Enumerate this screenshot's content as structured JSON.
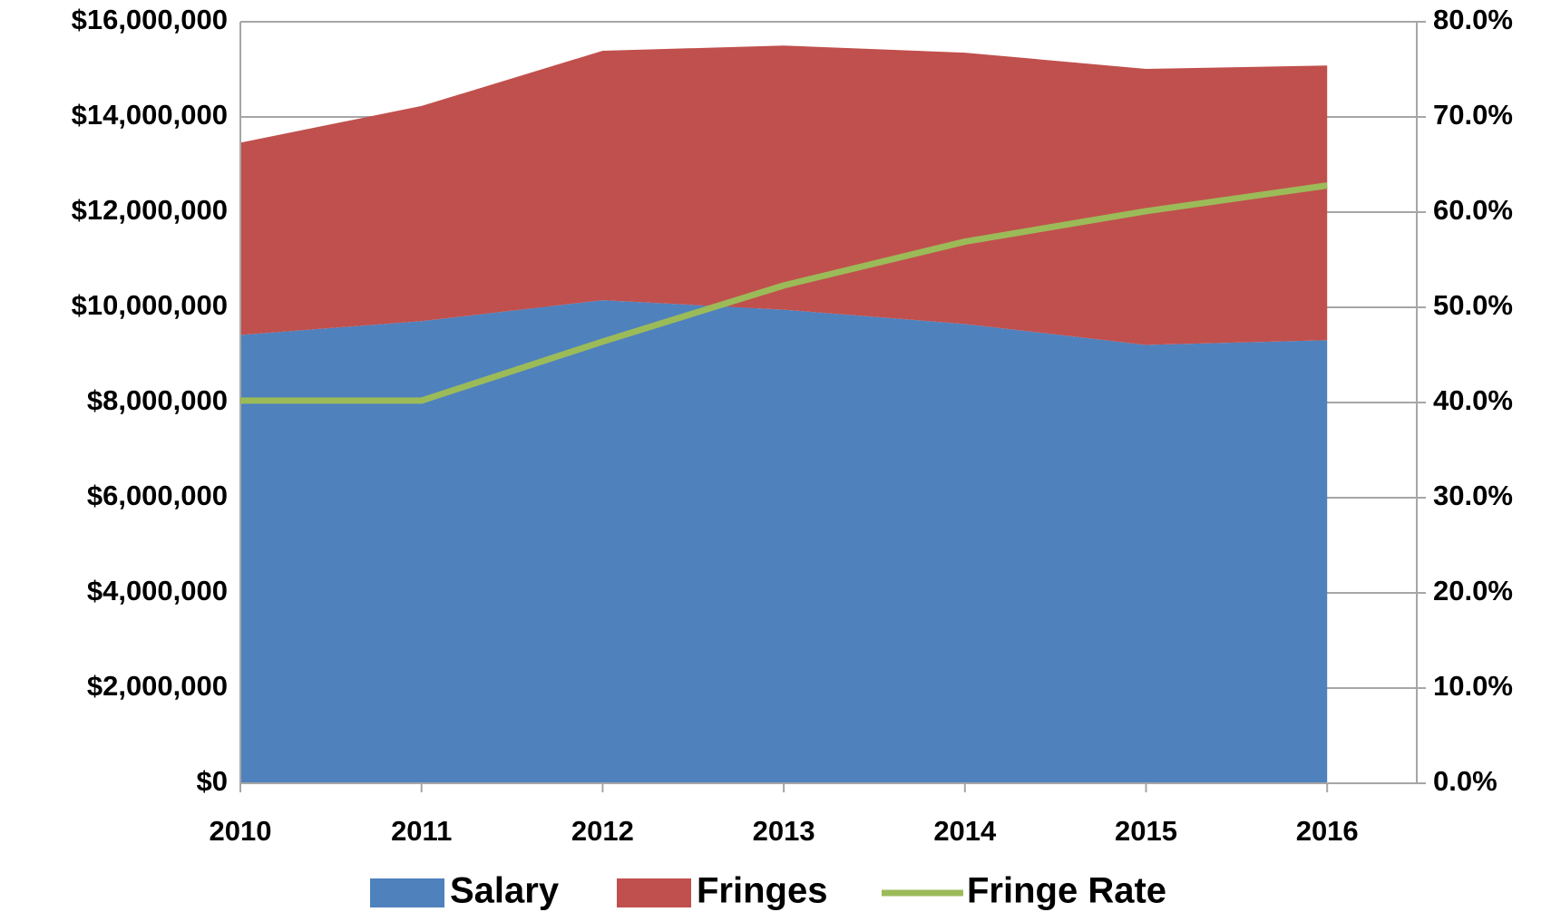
{
  "chart_data": {
    "type": "stacked-area-line",
    "categories": [
      "2010",
      "2011",
      "2012",
      "2013",
      "2014",
      "2015",
      "2016"
    ],
    "series": [
      {
        "name": "Salary",
        "color": "#4f81bd",
        "values": [
          9420000,
          9710000,
          10150000,
          9950000,
          9650000,
          9210000,
          9310000
        ]
      },
      {
        "name": "Fringes",
        "color": "#c0504d",
        "values": [
          4040000,
          4520000,
          5240000,
          5550000,
          5700000,
          5800000,
          5770000
        ]
      },
      {
        "name": "Fringe Rate",
        "color": "#9bbb59",
        "axis": "y2",
        "values": [
          40.2,
          40.2,
          46.4,
          52.3,
          56.9,
          60.1,
          62.8
        ]
      }
    ],
    "ylim": [
      0,
      16000000
    ],
    "yticks": [
      {
        "value": 0,
        "label": "$0"
      },
      {
        "value": 2000000,
        "label": "$2,000,000"
      },
      {
        "value": 4000000,
        "label": "$4,000,000"
      },
      {
        "value": 6000000,
        "label": "$6,000,000"
      },
      {
        "value": 8000000,
        "label": "$8,000,000"
      },
      {
        "value": 10000000,
        "label": "$10,000,000"
      },
      {
        "value": 12000000,
        "label": "$12,000,000"
      },
      {
        "value": 14000000,
        "label": "$14,000,000"
      },
      {
        "value": 16000000,
        "label": "$16,000,000"
      }
    ],
    "y2lim": [
      0,
      80
    ],
    "y2ticks": [
      {
        "value": 0,
        "label": "0.0%"
      },
      {
        "value": 10,
        "label": "10.0%"
      },
      {
        "value": 20,
        "label": "20.0%"
      },
      {
        "value": 30,
        "label": "30.0%"
      },
      {
        "value": 40,
        "label": "40.0%"
      },
      {
        "value": 50,
        "label": "50.0%"
      },
      {
        "value": 60,
        "label": "60.0%"
      },
      {
        "value": 70,
        "label": "70.0%"
      },
      {
        "value": 80,
        "label": "80.0%"
      }
    ],
    "grid": true,
    "legend": "bottom"
  }
}
